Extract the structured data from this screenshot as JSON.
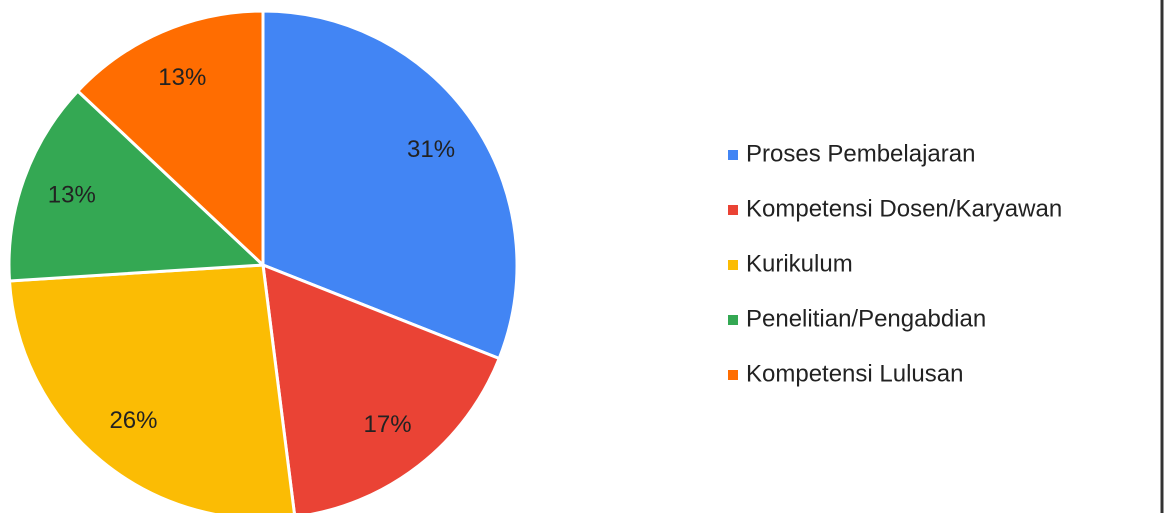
{
  "chart_data": {
    "type": "pie",
    "categories": [
      "Proses Pembelajaran",
      "Kompetensi Dosen/Karyawan",
      "Kurikulum",
      "Penelitian/Pengabdian",
      "Kompetensi Lulusan"
    ],
    "values": [
      31,
      17,
      26,
      13,
      13
    ],
    "value_labels": [
      "31%",
      "17%",
      "26%",
      "13%",
      "13%"
    ],
    "colors": [
      "#4285f4",
      "#ea4335",
      "#fbbc04",
      "#34a853",
      "#ff6d01"
    ],
    "legend": "right"
  }
}
